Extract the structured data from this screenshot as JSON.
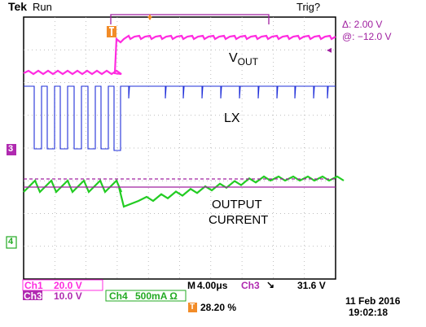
{
  "header": {
    "brand": "Tek",
    "run_state": "Run",
    "trigger_status": "Trig?",
    "cursor_delta": "Δ:   2.00 V",
    "cursor_at": "@:  −12.0 V"
  },
  "annotations": {
    "vout_main": "V",
    "vout_sub": "OUT",
    "lx": "LX",
    "current_line1": "OUTPUT",
    "current_line2": "CURRENT"
  },
  "markers": {
    "ch3": "3",
    "ch4": "4",
    "trigger_level": "◂",
    "trigger_pos": "T"
  },
  "readouts": {
    "ch1_label": "Ch1",
    "ch1_scale": "20.0 V",
    "ch3_label": "Ch3",
    "ch3_scale": "10.0 V",
    "ch4_label": "Ch4",
    "ch4_scale": "500mA Ω",
    "timebase_prefix": "M",
    "timebase": "4.00μs",
    "trigger_ch": "Ch3",
    "trigger_slope": "↘",
    "trigger_level": "31.6 V",
    "trigger_position": "28.20 %",
    "date": "11 Feb  2016",
    "time": "19:02:18"
  },
  "colors": {
    "ch1": "#ff2ce0",
    "ch3": "#1f2fd9",
    "ch4": "#22cc22",
    "frame": "#000000",
    "grid": "#9a9a9a",
    "cursor": "#a020a0",
    "trigger": "#f28c28",
    "ch3_badge": "#b02ab0",
    "ch4_badge": "#22aa22"
  }
}
